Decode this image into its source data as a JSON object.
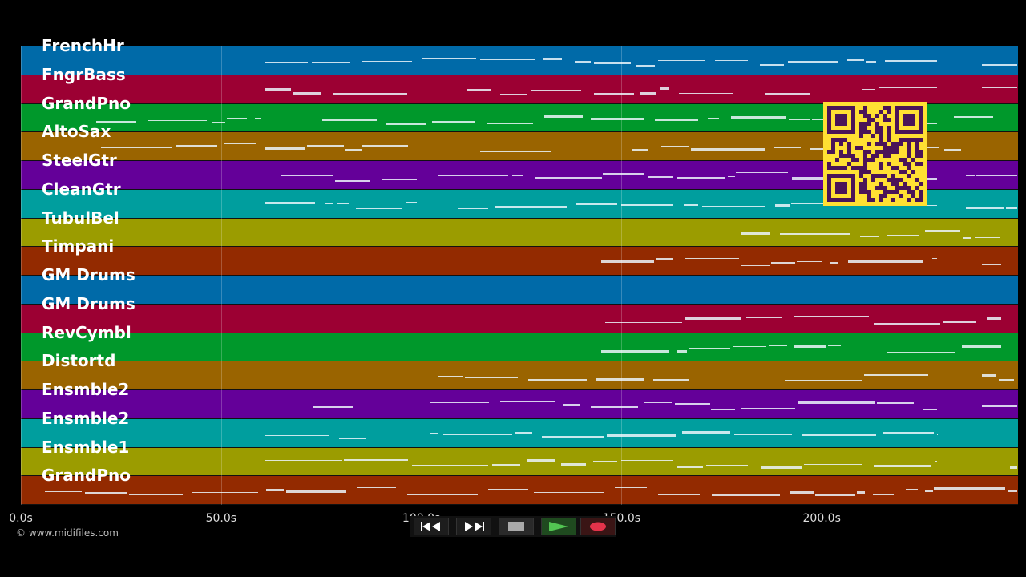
{
  "tracks": [
    {
      "label": "FrenchHr",
      "color": "#006aa8"
    },
    {
      "label": "FngrBass",
      "color": "#9c0033"
    },
    {
      "label": "GrandPno",
      "color": "#00982b"
    },
    {
      "label": "AltoSax",
      "color": "#9a6400"
    },
    {
      "label": "SteelGtr",
      "color": "#640099"
    },
    {
      "label": "CleanGtr",
      "color": "#009e9e"
    },
    {
      "label": "TubulBel",
      "color": "#9b9c00"
    },
    {
      "label": "Timpani",
      "color": "#932a00"
    },
    {
      "label": "GM Drums",
      "color": "#006aa8"
    },
    {
      "label": "GM Drums",
      "color": "#9c0033"
    },
    {
      "label": "RevCymbl",
      "color": "#00982b"
    },
    {
      "label": "Distortd",
      "color": "#9a6400"
    },
    {
      "label": "Ensmble2",
      "color": "#640099"
    },
    {
      "label": "Ensmble2",
      "color": "#009e9e"
    },
    {
      "label": "Ensmble1",
      "color": "#9b9c00"
    },
    {
      "label": "GrandPno",
      "color": "#932a00"
    }
  ],
  "time_axis": {
    "ticks": [
      "0.0s",
      "50.0s",
      "100.0s",
      "150.0s",
      "200.0s"
    ],
    "tick_values": [
      0,
      50,
      100,
      150,
      200
    ],
    "max_seconds": 249
  },
  "credit": "© www.midifiles.com",
  "transport": {
    "rewind_icon": "rewind-icon",
    "fast_forward_icon": "fast-forward-icon",
    "stop_icon": "stop-icon",
    "play_icon": "play-icon",
    "record_icon": "record-icon"
  }
}
